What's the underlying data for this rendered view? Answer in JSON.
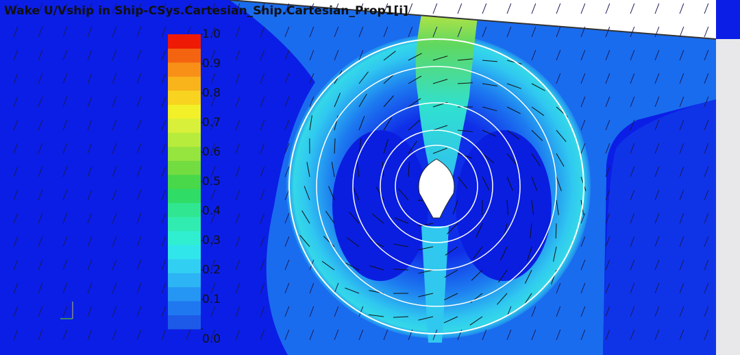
{
  "header": {
    "title": "Wake U/Vship in Ship-CSys.Cartesian_Ship.Cartesian_Prop1[i]"
  },
  "colorbar": {
    "range": [
      0,
      1
    ],
    "ticks": [
      {
        "value": 1,
        "label": "1.0"
      },
      {
        "value": 0.9,
        "label": "0.9"
      },
      {
        "value": 0.8,
        "label": "0.8"
      },
      {
        "value": 0.7,
        "label": "0.7"
      },
      {
        "value": 0.6,
        "label": "0.6"
      },
      {
        "value": 0.5,
        "label": "0.5"
      },
      {
        "value": 0.4,
        "label": "0.4"
      },
      {
        "value": 0.3,
        "label": "0.3"
      },
      {
        "value": 0.2,
        "label": "0.2"
      },
      {
        "value": 0.1,
        "label": "0.1"
      },
      {
        "value": 0,
        "label": "0.0"
      }
    ],
    "colors": [
      "#1e5ae8",
      "#1f78f0",
      "#2596f4",
      "#2db4f4",
      "#31d0f2",
      "#30e6ea",
      "#30eed0",
      "#30ecb0",
      "#30e690",
      "#2fdc66",
      "#48d84a",
      "#72dc40",
      "#96e43e",
      "#b8ec3c",
      "#d8f03a",
      "#f2f028",
      "#f8d420",
      "#f8b41a",
      "#f89018",
      "#f46410",
      "#ee1a06"
    ]
  }
}
